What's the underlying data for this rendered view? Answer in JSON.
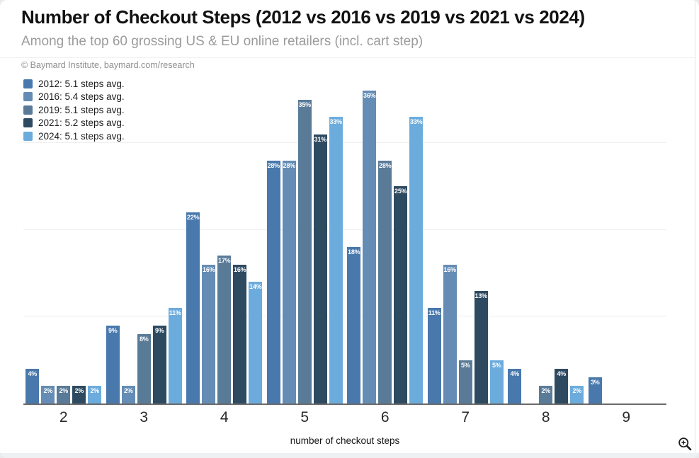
{
  "header": {
    "title": "Number of Checkout Steps (2012 vs 2016 vs 2019 vs 2021 vs 2024)",
    "subtitle": "Among the top 60 grossing US & EU online retailers (incl. cart step)",
    "attribution": "© Baymard Institute, baymard.com/research"
  },
  "legend": [
    {
      "year": "2012",
      "label": "2012: 5.1 steps avg.",
      "color": "#4878ac"
    },
    {
      "year": "2016",
      "label": "2016: 5.4 steps avg.",
      "color": "#648cb4"
    },
    {
      "year": "2019",
      "label": "2019: 5.1 steps avg.",
      "color": "#5a7b98"
    },
    {
      "year": "2021",
      "label": "2021: 5.2 steps avg.",
      "color": "#2e4a61"
    },
    {
      "year": "2024",
      "label": "2024: 5.1 steps avg.",
      "color": "#6cacdd"
    }
  ],
  "chart_data": {
    "type": "bar",
    "title": "Number of Checkout Steps (2012 vs 2016 vs 2019 vs 2021 vs 2024)",
    "subtitle": "Among the top 60 grossing US & EU online retailers (incl. cart step)",
    "categories": [
      "2",
      "3",
      "4",
      "5",
      "6",
      "7",
      "8",
      "9"
    ],
    "series": [
      {
        "name": "2012",
        "color": "#4878ac",
        "values": [
          4,
          9,
          22,
          28,
          18,
          11,
          4,
          3
        ]
      },
      {
        "name": "2016",
        "color": "#648cb4",
        "values": [
          2,
          2,
          16,
          28,
          36,
          16,
          0,
          0
        ]
      },
      {
        "name": "2019",
        "color": "#5a7b98",
        "values": [
          2,
          8,
          17,
          35,
          28,
          5,
          2,
          0
        ]
      },
      {
        "name": "2021",
        "color": "#2e4a61",
        "values": [
          2,
          9,
          16,
          31,
          25,
          13,
          4,
          0
        ]
      },
      {
        "name": "2024",
        "color": "#6cacdd",
        "values": [
          2,
          11,
          14,
          33,
          33,
          5,
          2,
          0
        ]
      }
    ],
    "value_suffix": "%",
    "xlabel": "number of checkout steps",
    "ylabel": "",
    "ylim": [
      0,
      37.5
    ],
    "gridlines": [
      10,
      20,
      30
    ],
    "grid": "horizontal-faint",
    "legend_position": "top-left",
    "bar_label_style": "white, inside top of bar, hidden when 0"
  },
  "controls": {
    "zoom_icon": "zoom-in-magnifier"
  }
}
